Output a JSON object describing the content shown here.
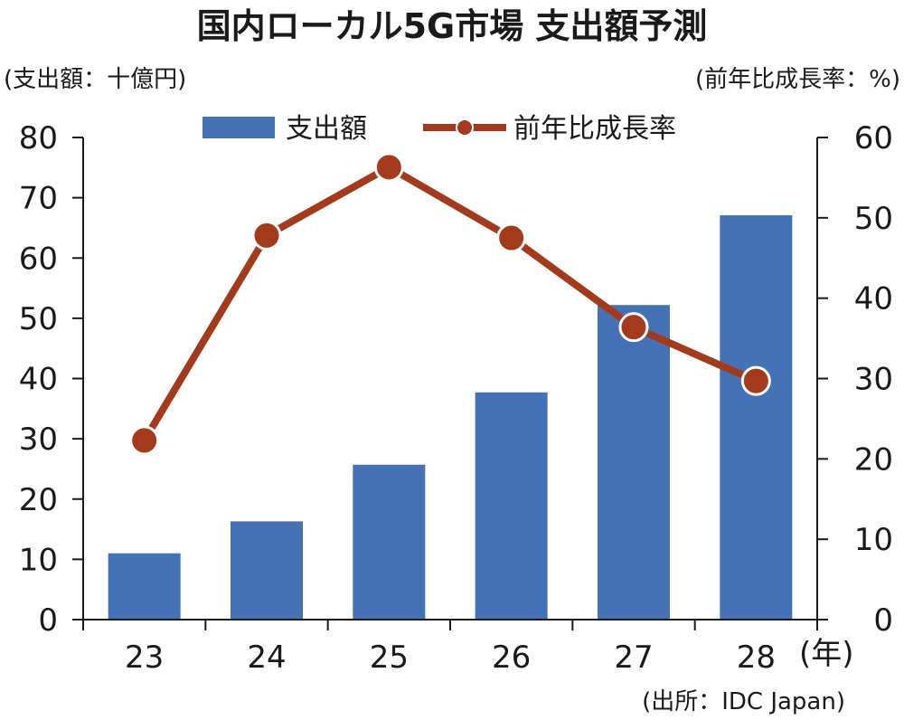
{
  "chart_data": {
    "type": "bar+line",
    "title": "国内ローカル5G市場 支出額予測",
    "categories": [
      "23",
      "24",
      "25",
      "26",
      "27",
      "28"
    ],
    "x_unit_label": "(年)",
    "left_axis": {
      "unit_label": "(支出額：十億円)",
      "range": [
        0,
        80
      ],
      "ticks": [
        0,
        10,
        20,
        30,
        40,
        50,
        60,
        70,
        80
      ]
    },
    "right_axis": {
      "unit_label": "(前年比成長率：%)",
      "range": [
        0,
        60
      ],
      "ticks": [
        0,
        10,
        20,
        30,
        40,
        50,
        60
      ]
    },
    "series": [
      {
        "name": "支出額",
        "type": "bar",
        "axis": "left",
        "color": "#4472b4",
        "values": [
          11.0,
          16.3,
          25.7,
          37.7,
          52.2,
          67.1
        ]
      },
      {
        "name": "前年比成長率",
        "type": "line",
        "axis": "right",
        "color": "#a33a1c",
        "values": [
          22.3,
          47.8,
          56.3,
          47.5,
          36.4,
          29.7
        ]
      }
    ],
    "legend_position": "top",
    "grid": false,
    "source": "(出所：IDC Japan)"
  }
}
